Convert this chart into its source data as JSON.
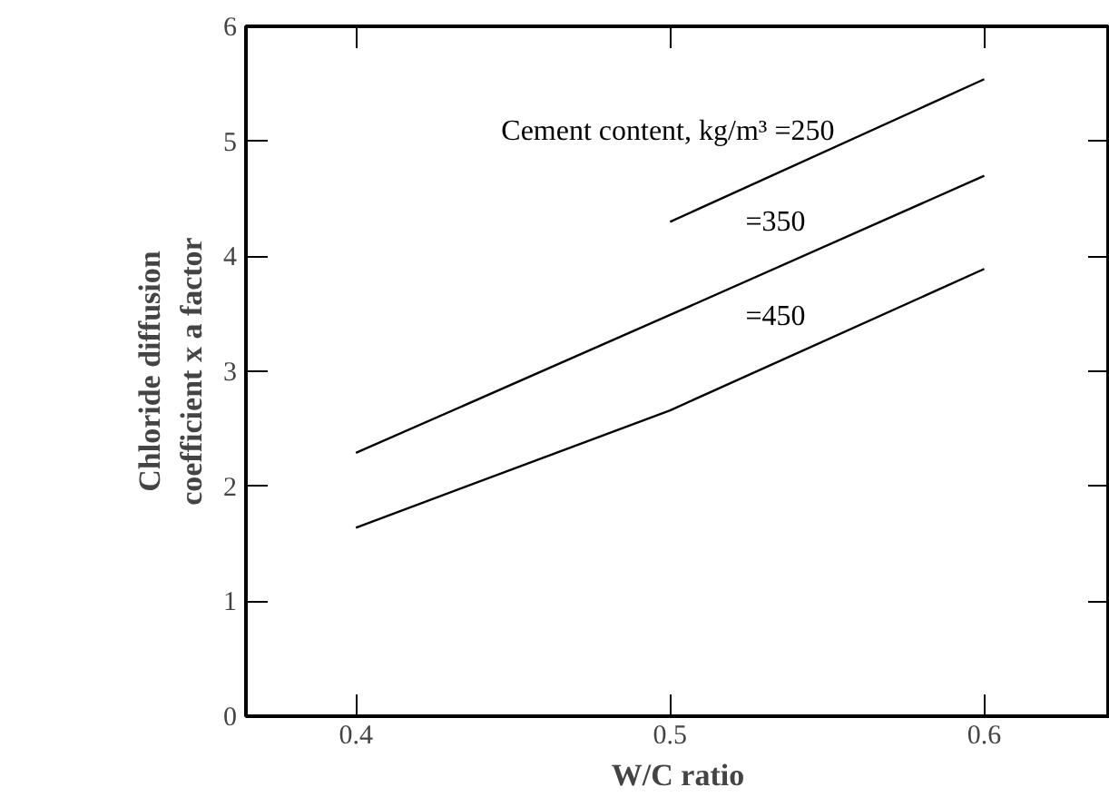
{
  "chart_data": {
    "type": "line",
    "xlabel": "W/C ratio",
    "ylabel": "Chloride diffusion\ncoefficient x a factor",
    "xlim": [
      0.365,
      0.64
    ],
    "ylim": [
      0,
      6
    ],
    "xticks": [
      0.4,
      0.5,
      0.6
    ],
    "yticks": [
      0,
      1,
      2,
      3,
      4,
      5,
      6
    ],
    "grid": false,
    "marker": "none",
    "line_style": "solid",
    "series": [
      {
        "name": "Cement content, kg/m³ =250",
        "color": "#000000",
        "x": [
          0.5,
          0.6
        ],
        "values": [
          4.3,
          5.54
        ]
      },
      {
        "name": "=350",
        "color": "#000000",
        "x": [
          0.4,
          0.5,
          0.6
        ],
        "values": [
          2.29,
          3.49,
          4.7
        ]
      },
      {
        "name": "=450",
        "color": "#000000",
        "x": [
          0.4,
          0.5,
          0.6
        ],
        "values": [
          1.64,
          2.66,
          3.89
        ]
      }
    ]
  }
}
